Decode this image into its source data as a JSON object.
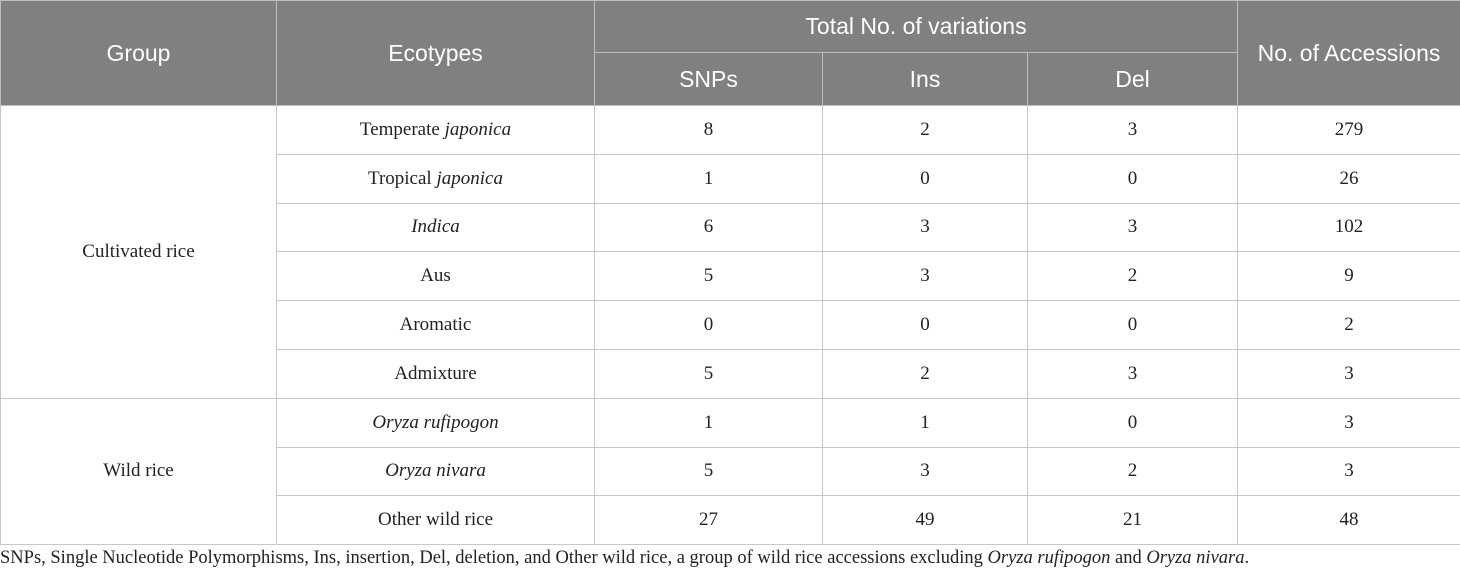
{
  "header": {
    "group": "Group",
    "ecotypes": "Ecotypes",
    "total_variations": "Total No. of variations",
    "snps": "SNPs",
    "ins": "Ins",
    "del": "Del",
    "accessions": "No. of Accessions"
  },
  "groups": [
    {
      "name": "Cultivated rice",
      "rows": [
        {
          "pre": "Temperate ",
          "ital": "japonica",
          "snps": "8",
          "ins": "2",
          "del": "3",
          "acc": "279"
        },
        {
          "pre": "Tropical ",
          "ital": "japonica",
          "snps": "1",
          "ins": "0",
          "del": "0",
          "acc": "26"
        },
        {
          "pre": "",
          "ital": "Indica",
          "snps": "6",
          "ins": "3",
          "del": "3",
          "acc": "102"
        },
        {
          "pre": "Aus",
          "ital": "",
          "snps": "5",
          "ins": "3",
          "del": "2",
          "acc": "9"
        },
        {
          "pre": "Aromatic",
          "ital": "",
          "snps": "0",
          "ins": "0",
          "del": "0",
          "acc": "2"
        },
        {
          "pre": "Admixture",
          "ital": "",
          "snps": "5",
          "ins": "2",
          "del": "3",
          "acc": "3"
        }
      ]
    },
    {
      "name": "Wild rice",
      "rows": [
        {
          "pre": "",
          "ital": "Oryza rufipogon",
          "snps": "1",
          "ins": "1",
          "del": "0",
          "acc": "3"
        },
        {
          "pre": "",
          "ital": "Oryza nivara",
          "snps": "5",
          "ins": "3",
          "del": "2",
          "acc": "3"
        },
        {
          "pre": "Other wild rice",
          "ital": "",
          "snps": "27",
          "ins": "49",
          "del": "21",
          "acc": "48"
        }
      ]
    }
  ],
  "caption": {
    "part1": "SNPs, Single Nucleotide Polymorphisms, Ins, insertion, Del, deletion, and Other wild rice, a group of wild rice accessions excluding ",
    "ital1": "Oryza rufipogon",
    "part2": " and ",
    "ital2": "Oryza nivara",
    "part3": "."
  }
}
